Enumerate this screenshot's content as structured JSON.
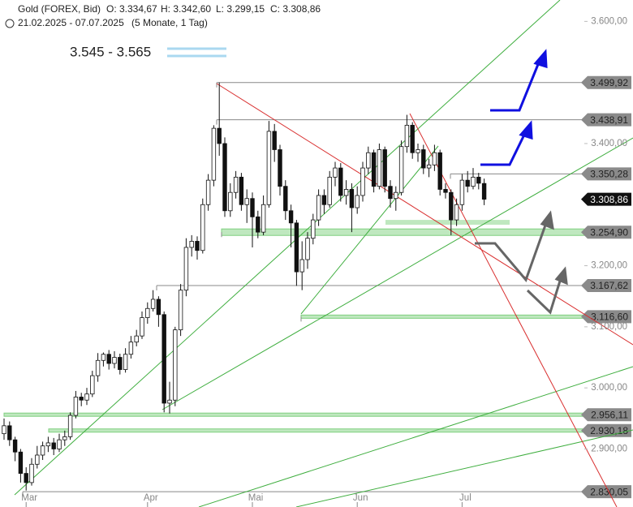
{
  "chart_data": {
    "type": "candlestick",
    "title": "Gold (FOREX, Bid)",
    "ohlc_header": [
      "O: 3.334,67",
      "H: 3.342,60",
      "L: 3.299,15",
      "C: 3.308,86"
    ],
    "date_range": "21.02.2025 - 07.07.2025",
    "period": "(5 Monate, 1 Tag)",
    "target_zone": "3.545 - 3.565",
    "categories": [
      null,
      null,
      null,
      null,
      "Mar",
      null,
      null,
      null,
      null,
      null,
      null,
      null,
      null,
      null,
      null,
      null,
      null,
      null,
      null,
      null,
      null,
      null,
      null,
      null,
      null,
      null,
      "Apr",
      null,
      null,
      null,
      null,
      null,
      null,
      null,
      null,
      null,
      null,
      null,
      null,
      null,
      null,
      null,
      null,
      null,
      null,
      "Mai",
      null,
      null,
      null,
      null,
      null,
      null,
      null,
      null,
      null,
      null,
      null,
      null,
      null,
      null,
      null,
      null,
      null,
      null,
      "Jun",
      null,
      null,
      null,
      null,
      null,
      null,
      null,
      null,
      null,
      null,
      null,
      null,
      null,
      null,
      null,
      null,
      null,
      null,
      "Jul",
      null,
      null,
      null,
      null
    ],
    "open": [
      2925,
      2938,
      2915,
      2895,
      2860,
      2845,
      2875,
      2890,
      2905,
      2910,
      2900,
      2915,
      2920,
      2955,
      2985,
      2980,
      2990,
      3020,
      3045,
      3055,
      3040,
      3050,
      3030,
      3055,
      3075,
      3085,
      3115,
      3130,
      3145,
      3120,
      2975,
      2980,
      3095,
      3160,
      3230,
      3240,
      3225,
      3300,
      3340,
      3425,
      3400,
      3290,
      3320,
      3345,
      3300,
      3310,
      3280,
      3255,
      3300,
      3420,
      3390,
      3330,
      3290,
      3270,
      3190,
      3210,
      3245,
      3275,
      3315,
      3300,
      3345,
      3360,
      3315,
      3325,
      3295,
      3315,
      3360,
      3385,
      3330,
      3390,
      3330,
      3310,
      3320,
      3395,
      3430,
      3385,
      3390,
      3360,
      3365,
      3385,
      3325,
      3320,
      3275,
      3300,
      3340,
      3330,
      3345,
      3334.67
    ],
    "high": [
      2950,
      2945,
      2920,
      2900,
      2870,
      2885,
      2905,
      2912,
      2920,
      2918,
      2925,
      2930,
      2960,
      2995,
      2992,
      3000,
      3028,
      3057,
      3058,
      3062,
      3060,
      3056,
      3065,
      3085,
      3095,
      3125,
      3140,
      3160,
      3150,
      3125,
      3010,
      3100,
      3170,
      3245,
      3250,
      3248,
      3310,
      3350,
      3430,
      3500,
      3410,
      3335,
      3355,
      3352,
      3325,
      3320,
      3290,
      3315,
      3437,
      3432,
      3398,
      3340,
      3300,
      3275,
      3240,
      3255,
      3285,
      3325,
      3325,
      3355,
      3370,
      3368,
      3340,
      3335,
      3330,
      3370,
      3395,
      3390,
      3400,
      3395,
      3340,
      3330,
      3405,
      3447,
      3435,
      3400,
      3398,
      3375,
      3398,
      3390,
      3335,
      3325,
      3310,
      3350,
      3355,
      3360,
      3352,
      3342.6
    ],
    "low": [
      2915,
      2905,
      2880,
      2845,
      2832,
      2840,
      2868,
      2882,
      2895,
      2890,
      2895,
      2905,
      2915,
      2950,
      2970,
      2972,
      2985,
      3010,
      3035,
      3030,
      3032,
      3022,
      3025,
      3048,
      3068,
      3080,
      3105,
      3125,
      3100,
      2960,
      2958,
      2970,
      3085,
      3150,
      3215,
      3210,
      3220,
      3290,
      3330,
      3380,
      3280,
      3280,
      3310,
      3290,
      3270,
      3230,
      3245,
      3250,
      3295,
      3370,
      3315,
      3275,
      3230,
      3167,
      3160,
      3195,
      3235,
      3265,
      3285,
      3295,
      3330,
      3305,
      3300,
      3255,
      3285,
      3305,
      3350,
      3320,
      3325,
      3320,
      3295,
      3290,
      3315,
      3385,
      3375,
      3370,
      3350,
      3345,
      3355,
      3315,
      3310,
      3250,
      3265,
      3290,
      3320,
      3325,
      3325,
      3299.15
    ],
    "close": [
      2938,
      2915,
      2895,
      2860,
      2845,
      2875,
      2890,
      2905,
      2910,
      2900,
      2915,
      2920,
      2955,
      2985,
      2980,
      2990,
      3020,
      3045,
      3055,
      3040,
      3050,
      3030,
      3055,
      3075,
      3085,
      3115,
      3130,
      3145,
      3120,
      2975,
      2980,
      3095,
      3160,
      3230,
      3240,
      3225,
      3300,
      3340,
      3425,
      3400,
      3290,
      3320,
      3345,
      3300,
      3310,
      3280,
      3255,
      3300,
      3420,
      3390,
      3330,
      3290,
      3270,
      3190,
      3210,
      3245,
      3275,
      3315,
      3300,
      3345,
      3360,
      3315,
      3325,
      3295,
      3315,
      3360,
      3385,
      3330,
      3390,
      3330,
      3310,
      3320,
      3395,
      3430,
      3385,
      3390,
      3360,
      3365,
      3385,
      3325,
      3320,
      3275,
      3300,
      3340,
      3330,
      3345,
      3335,
      3308.86
    ],
    "ylim": [
      2805,
      3635
    ],
    "yticks": [
      {
        "value": 3600,
        "label": "3.600,00"
      },
      {
        "value": 3400,
        "label": "3.400,00"
      },
      {
        "value": 3200,
        "label": "3.200,00"
      },
      {
        "value": 3100,
        "label": "3.100,00"
      },
      {
        "value": 3000,
        "label": "3.000,00"
      },
      {
        "value": 2900,
        "label": "2.900,00"
      }
    ],
    "levels": [
      {
        "value": 3499.92,
        "label": "3.499,92"
      },
      {
        "value": 3438.91,
        "label": "3.438,91"
      },
      {
        "value": 3350.28,
        "label": "3.350,28"
      },
      {
        "value": 3254.9,
        "label": "3.254,90"
      },
      {
        "value": 3167.62,
        "label": "3.167,62"
      },
      {
        "value": 3116.6,
        "label": "3.116,60"
      },
      {
        "value": 2956.11,
        "label": "2.956,11"
      },
      {
        "value": 2930.18,
        "label": "2.930,18"
      },
      {
        "value": 2830.05,
        "label": "2.830,05"
      }
    ],
    "last_price": {
      "value": 3308.86,
      "label": "3.308,86"
    }
  }
}
